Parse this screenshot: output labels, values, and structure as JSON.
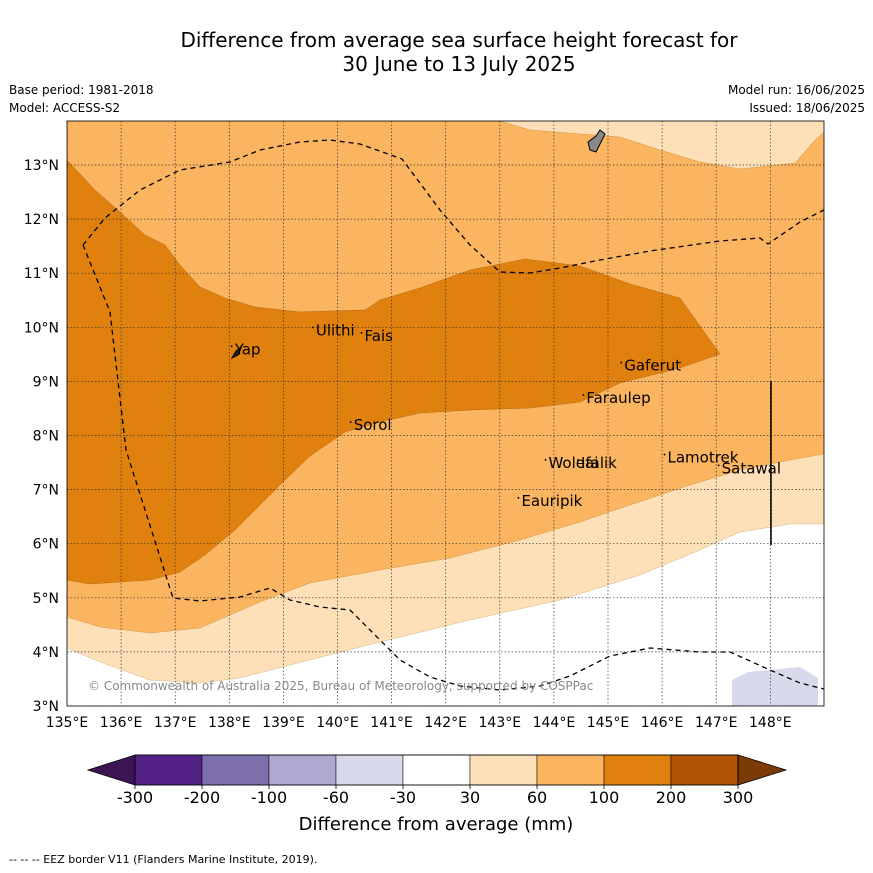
{
  "title_line1": "Difference from average sea surface height forecast for",
  "title_line2": "30 June to 13 July 2025",
  "meta": {
    "base_period": "Base period: 1981-2018",
    "model": "Model: ACCESS-S2",
    "model_run": "Model run: 16/06/2025",
    "issued": "Issued: 18/06/2025"
  },
  "map": {
    "lon_range": [
      135,
      149
    ],
    "lat_range": [
      3,
      13.8
    ],
    "lon_ticks": [
      "135°E",
      "136°E",
      "137°E",
      "138°E",
      "139°E",
      "140°E",
      "141°E",
      "142°E",
      "143°E",
      "144°E",
      "145°E",
      "146°E",
      "147°E",
      "148°E"
    ],
    "lat_ticks": [
      "3°N",
      "4°N",
      "5°N",
      "6°N",
      "7°N",
      "8°N",
      "9°N",
      "10°N",
      "11°N",
      "12°N",
      "13°N"
    ],
    "places": [
      {
        "name": "Yap",
        "lon": 138.1,
        "lat": 9.5
      },
      {
        "name": "Ulithi",
        "lon": 139.6,
        "lat": 9.85
      },
      {
        "name": "Fais",
        "lon": 140.5,
        "lat": 9.75
      },
      {
        "name": "Gaferut",
        "lon": 145.3,
        "lat": 9.2
      },
      {
        "name": "Faraulep",
        "lon": 144.6,
        "lat": 8.6
      },
      {
        "name": "Sorol",
        "lon": 140.3,
        "lat": 8.1
      },
      {
        "name": "Woleai",
        "lon": 143.9,
        "lat": 7.4
      },
      {
        "name": "Ifalik",
        "lon": 144.5,
        "lat": 7.4
      },
      {
        "name": "Lamotrek",
        "lon": 146.1,
        "lat": 7.5
      },
      {
        "name": "Satawal",
        "lon": 147.1,
        "lat": 7.3
      },
      {
        "name": "Eauripik",
        "lon": 143.4,
        "lat": 6.7
      }
    ],
    "copyright": "© Commonwealth of Australia 2025, Bureau of Meteorology, supported by COSPPac"
  },
  "legend": {
    "title": "Difference from average (mm)",
    "tick_labels": [
      "-300",
      "-200",
      "-100",
      "-60",
      "-30",
      "30",
      "60",
      "100",
      "200",
      "300"
    ],
    "colors": [
      "#3d1454",
      "#542286",
      "#7d70ac",
      "#b1a8d2",
      "#d8d9eb",
      "#ffffff",
      "#fde0b8",
      "#fbb45f",
      "#e0810f",
      "#b05505",
      "#7c3a06"
    ]
  },
  "footer": "--  --  -- EEZ border V11 (Flanders Marine Institute, 2019)."
}
